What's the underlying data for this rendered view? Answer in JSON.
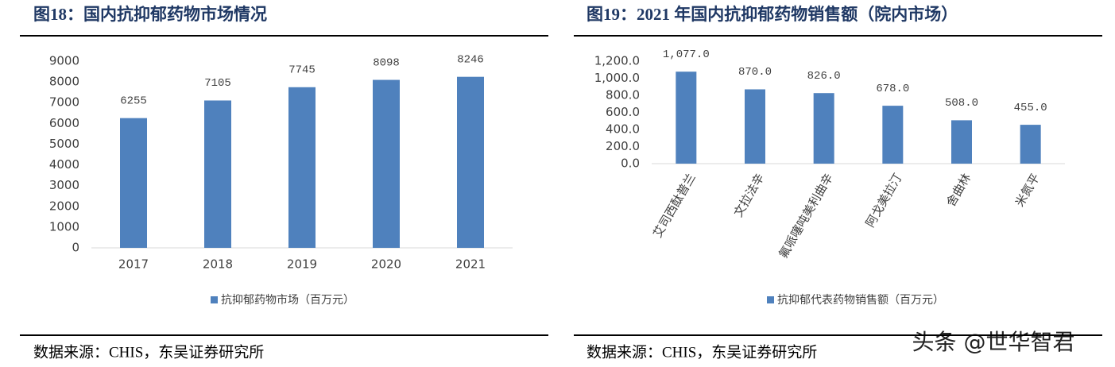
{
  "chart_data": [
    {
      "type": "bar",
      "title": "图18：国内抗抑郁药物市场情况",
      "categories": [
        "2017",
        "2018",
        "2019",
        "2020",
        "2021"
      ],
      "series": [
        {
          "name": "抗抑郁药物市场（百万元）",
          "color": "#4f81bd",
          "values": [
            6255,
            7105,
            7745,
            8098,
            8246
          ]
        }
      ],
      "ylim": [
        0,
        9000
      ],
      "yticks": [
        0,
        1000,
        2000,
        3000,
        4000,
        5000,
        6000,
        7000,
        8000,
        9000
      ],
      "grid": false,
      "legend": "bottom",
      "source": "数据来源：CHIS，东吴证券研究所"
    },
    {
      "type": "bar",
      "title": "图19：2021 年国内抗抑郁药物销售额（院内市场）",
      "categories": [
        "艾司西酞普兰",
        "文拉法辛",
        "氟哌噻吨美利曲辛",
        "阿戈美拉汀",
        "舍曲林",
        "米氮平"
      ],
      "series": [
        {
          "name": "抗抑郁代表药物销售额（百万元）",
          "color": "#4f81bd",
          "values": [
            1077,
            870,
            826,
            678,
            508,
            455
          ],
          "value_labels": [
            "1,077.0",
            "870.0",
            "826.0",
            "678.0",
            "508.0",
            "455.0"
          ]
        }
      ],
      "ylim": [
        0,
        1200
      ],
      "yticks": [
        {
          "value": 0,
          "label": "0.0"
        },
        {
          "value": 200,
          "label": "200.0"
        },
        {
          "value": 400,
          "label": "400.0"
        },
        {
          "value": 600,
          "label": "600.0"
        },
        {
          "value": 800,
          "label": "800.0"
        },
        {
          "value": 1000,
          "label": "1,000.0"
        },
        {
          "value": 1200,
          "label": "1,200.0"
        }
      ],
      "grid": false,
      "legend": "bottom",
      "rotate_categories": true,
      "source": "数据来源：CHIS，东吴证券研究所"
    }
  ],
  "watermark": "头条 @世华智君"
}
